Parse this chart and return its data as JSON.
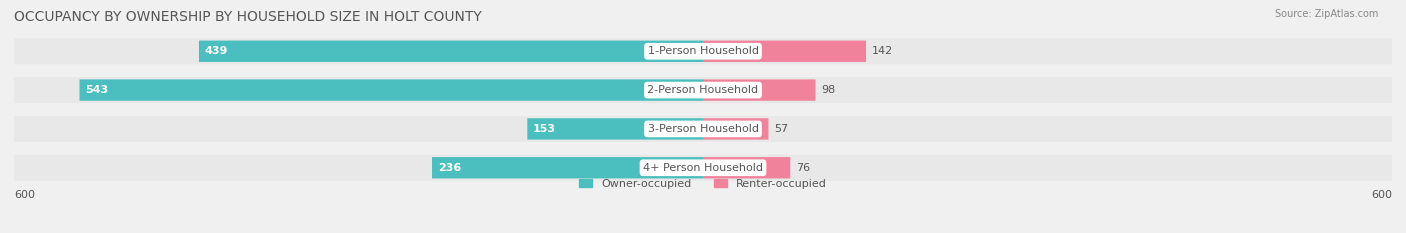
{
  "title": "OCCUPANCY BY OWNERSHIP BY HOUSEHOLD SIZE IN HOLT COUNTY",
  "source": "Source: ZipAtlas.com",
  "categories": [
    "1-Person Household",
    "2-Person Household",
    "3-Person Household",
    "4+ Person Household"
  ],
  "owner_values": [
    439,
    543,
    153,
    236
  ],
  "renter_values": [
    142,
    98,
    57,
    76
  ],
  "owner_color": "#4bbfbf",
  "renter_color": "#f0829b",
  "background_color": "#f0f0f0",
  "bar_bg_color": "#e0e0e0",
  "label_bg_color": "#ffffff",
  "xlim": 600,
  "bar_height": 0.55,
  "title_fontsize": 10,
  "tick_fontsize": 8,
  "label_fontsize": 8,
  "axis_label_left": "600",
  "axis_label_right": "600"
}
